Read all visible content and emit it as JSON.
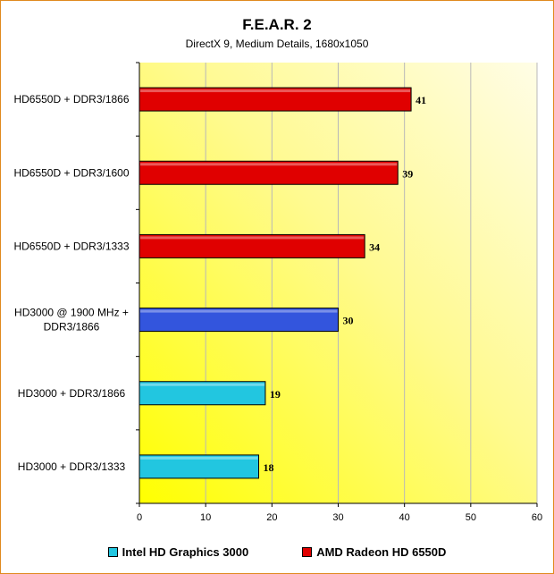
{
  "chart_data": {
    "type": "bar",
    "orientation": "horizontal",
    "title": "F.E.A.R. 2",
    "subtitle": "DirectX 9, Medium Details, 1680x1050",
    "categories": [
      "HD6550D + DDR3/1866",
      "HD6550D + DDR3/1600",
      "HD6550D + DDR3/1333",
      "HD3000 @ 1900 MHz + DDR3/1866",
      "HD3000 + DDR3/1866",
      "HD3000 + DDR3/1333"
    ],
    "category_lines": [
      [
        "HD6550D + DDR3/1866"
      ],
      [
        "HD6550D + DDR3/1600"
      ],
      [
        "HD6550D + DDR3/1333"
      ],
      [
        "HD3000 @ 1900 MHz +",
        "DDR3/1866"
      ],
      [
        "HD3000 + DDR3/1866"
      ],
      [
        "HD3000 + DDR3/1333"
      ]
    ],
    "values": [
      41,
      39,
      34,
      30,
      19,
      18
    ],
    "value_labels": [
      "41",
      "39",
      "34",
      "30",
      "19",
      "18"
    ],
    "bar_colors": [
      "#e00000",
      "#e00000",
      "#e00000",
      "#3355dd",
      "#22c6e0",
      "#22c6e0"
    ],
    "xlim": [
      0,
      60
    ],
    "xticks": [
      0,
      10,
      20,
      30,
      40,
      50,
      60
    ],
    "xtick_labels": [
      "0",
      "10",
      "20",
      "30",
      "40",
      "50",
      "60"
    ],
    "grid": true,
    "legend_position": "bottom",
    "legend": [
      {
        "label": "Intel HD Graphics 3000",
        "color": "#22c6e0"
      },
      {
        "label": "AMD Radeon HD 6550D",
        "color": "#e00000"
      }
    ]
  }
}
